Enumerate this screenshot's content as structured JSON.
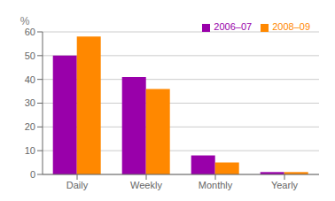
{
  "chart_data": {
    "type": "bar",
    "categories": [
      "Daily",
      "Weekly",
      "Monthly",
      "Yearly"
    ],
    "series": [
      {
        "name": "2006–07",
        "color": "#9900aa",
        "values": [
          50,
          41,
          8,
          1
        ]
      },
      {
        "name": "2008–09",
        "color": "#ff8800",
        "values": [
          58,
          36,
          5,
          1
        ]
      }
    ],
    "ylabel": "%",
    "ylim": [
      0,
      60
    ],
    "yticks": [
      0,
      10,
      20,
      30,
      40,
      50,
      60
    ],
    "grid": true,
    "legend": "upper right"
  }
}
